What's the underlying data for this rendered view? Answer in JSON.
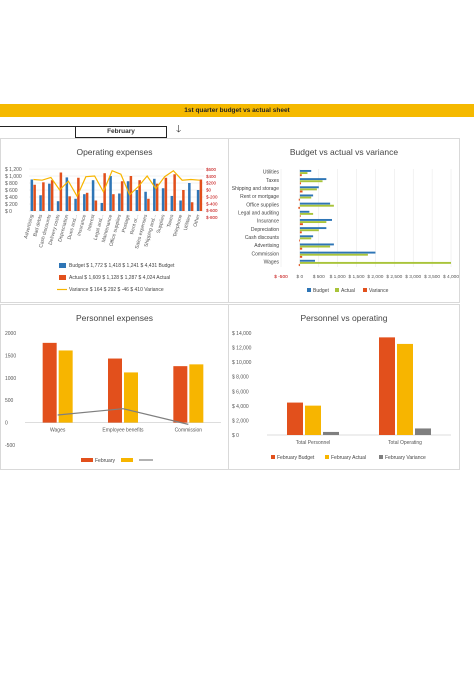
{
  "banner": {
    "title": "1st quarter budget vs actual sheet"
  },
  "month": {
    "label": "February",
    "arrow": "🡓"
  },
  "colors": {
    "blue": "#2e75b6",
    "orange": "#e2501c",
    "gold": "#f7b500",
    "yellowgreen": "#a9c43a",
    "gray": "#7f7f7f",
    "grid": "#e6e6e6"
  },
  "chart_data": [
    {
      "type": "bar",
      "title": "Operating expenses",
      "categories": [
        "Advertising",
        "Bad debts",
        "Cash discounts",
        "Delivery costs",
        "Depreciation",
        "Dues and...",
        "Insurance",
        "Interest",
        "Legal and...",
        "Maintenance",
        "Office supplies",
        "Postage",
        "Rent or...",
        "Sales expenses",
        "Shipping and...",
        "Supplies",
        "Taxes",
        "Telephone",
        "Utilities",
        "Other"
      ],
      "yticks": [
        "$ 1,200",
        "$ 1,000",
        "$ 800",
        "$ 600",
        "$ 400",
        "$ 200",
        "$ 0"
      ],
      "ylim": [
        0,
        1200
      ],
      "series": [
        {
          "name": "Budget",
          "values": [
            900,
            450,
            780,
            280,
            960,
            350,
            480,
            880,
            230,
            1000,
            500,
            850,
            600,
            550,
            920,
            650,
            430,
            300,
            800,
            600
          ]
        },
        {
          "name": "Actual",
          "values": [
            750,
            820,
            880,
            1100,
            420,
            950,
            520,
            300,
            1080,
            480,
            850,
            1000,
            880,
            350,
            780,
            950,
            1050,
            600,
            250,
            900
          ]
        },
        {
          "name": "Variance",
          "values": [
            900,
            880,
            960,
            600,
            850,
            420,
            980,
            1000,
            550,
            1150,
            1050,
            460,
            700,
            1000,
            640,
            980,
            1150,
            880,
            900,
            880
          ]
        }
      ],
      "legend": [
        {
          "key": "budget",
          "text": "Budget $ 1,772 $ 1,418 $ 1,241 $ 4,431 Budget"
        },
        {
          "key": "actual",
          "text": "Actual $ 1,609 $ 1,128 $ 1,287 $ 4,024 Actual"
        },
        {
          "key": "variance",
          "text": "Variance $ 164 $ 292 $ -46 $ 410 Variance"
        }
      ],
      "right_ticks": [
        "$600",
        "$400",
        "$200",
        "$0",
        "$-200",
        "$-400",
        "$-600",
        "$-800"
      ]
    },
    {
      "type": "bar",
      "orientation": "horizontal",
      "title": "Budget vs actual vs variance",
      "categories": [
        "Utilities",
        "Taxes",
        "Shipping and storage",
        "Rent or mortgage",
        "Office supplies",
        "Legal and auditing",
        "Insurance",
        "Depreciation",
        "Cash discounts",
        "Advertising",
        "Commission",
        "Wages"
      ],
      "xticks": [
        "$ -500",
        "$ 0",
        "$ 500",
        "$ 1,000",
        "$ 1,500",
        "$ 2,000",
        "$ 2,500",
        "$ 3,000",
        "$ 3,500",
        "$ 4,000"
      ],
      "xlim": [
        -500,
        4000
      ],
      "series": [
        {
          "name": "Budget",
          "values": [
            300,
            700,
            500,
            350,
            800,
            250,
            850,
            700,
            350,
            900,
            2000,
            400
          ]
        },
        {
          "name": "Actual",
          "values": [
            200,
            600,
            450,
            300,
            900,
            350,
            700,
            500,
            300,
            800,
            1800,
            4000
          ]
        },
        {
          "name": "Variance",
          "values": [
            50,
            30,
            70,
            -30,
            -40,
            20,
            80,
            50,
            -20,
            60,
            60,
            -30
          ]
        }
      ],
      "legend": [
        "Budget",
        "Actual",
        "Variance"
      ]
    },
    {
      "type": "bar",
      "title": "Personnel expenses",
      "categories": [
        "Wages",
        "Employee benefits",
        "Commission"
      ],
      "yticks": [
        "2000",
        "1500",
        "1000",
        "500",
        "0",
        "-500"
      ],
      "ylim": [
        -500,
        2000
      ],
      "series": [
        {
          "name": "February",
          "values": [
            1780,
            1430,
            1260
          ]
        },
        {
          "name": "",
          "values": [
            1610,
            1120,
            1300
          ]
        },
        {
          "name": "",
          "values": [
            170,
            310,
            -40
          ]
        }
      ],
      "legend": [
        "February",
        "",
        ""
      ]
    },
    {
      "type": "bar",
      "title": "Personnel vs operating",
      "categories": [
        "Total Personnel",
        "Total Operating"
      ],
      "yticks": [
        "$ 14,000",
        "$ 12,000",
        "$ 10,000",
        "$ 8,000",
        "$ 6,000",
        "$ 4,000",
        "$ 2,000",
        "$ 0"
      ],
      "ylim": [
        0,
        14000
      ],
      "series": [
        {
          "name": "February Budget",
          "values": [
            4450,
            13400
          ]
        },
        {
          "name": "February Actual",
          "values": [
            4030,
            12500
          ]
        },
        {
          "name": "February Variance",
          "values": [
            420,
            900
          ]
        }
      ],
      "legend": [
        "February Budget",
        "February Actual",
        "February Variance"
      ]
    }
  ]
}
